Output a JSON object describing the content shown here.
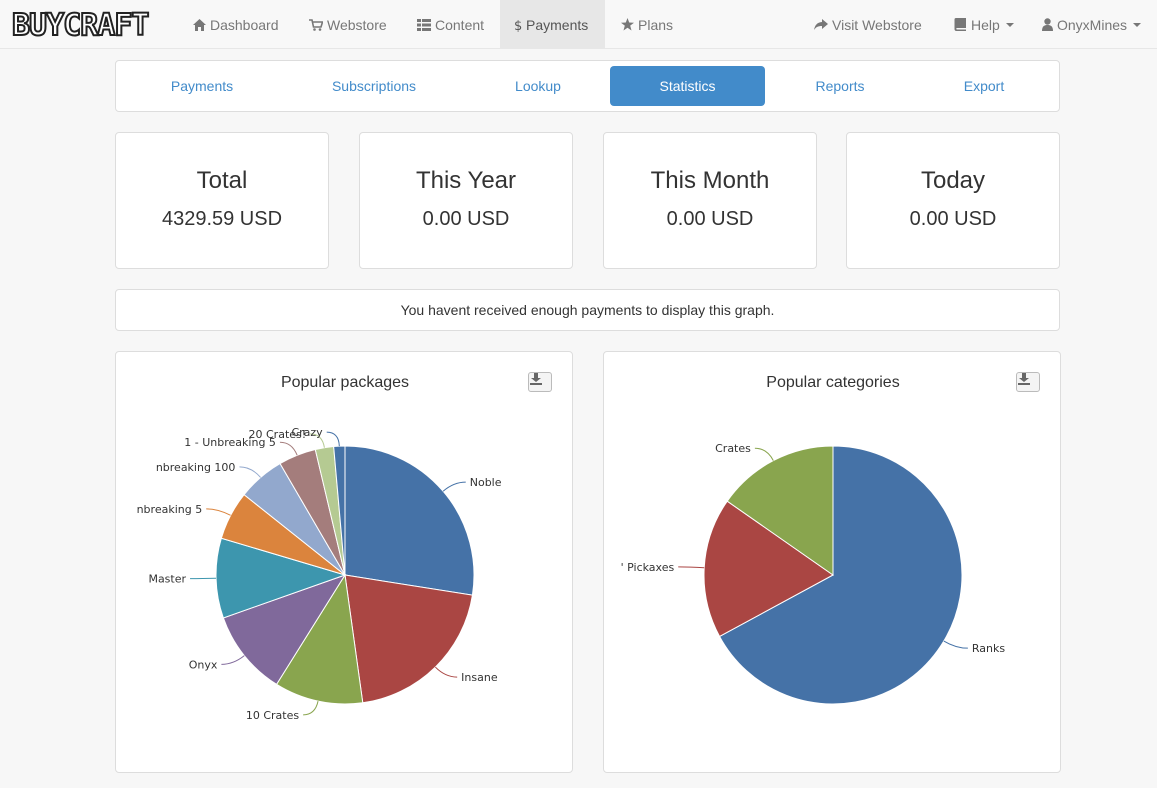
{
  "brand": {
    "name": "BUYCRAFT"
  },
  "nav": {
    "dashboard": "Dashboard",
    "webstore": "Webstore",
    "content": "Content",
    "payments": "Payments",
    "plans": "Plans",
    "visit_webstore": "Visit Webstore",
    "help": "Help",
    "user": "OnyxMines"
  },
  "subtabs": [
    "Payments",
    "Subscriptions",
    "Lookup",
    "Statistics",
    "Reports",
    "Export"
  ],
  "stats": [
    {
      "title": "Total",
      "value": "4329.59 USD"
    },
    {
      "title": "This Year",
      "value": "0.00 USD"
    },
    {
      "title": "This Month",
      "value": "0.00 USD"
    },
    {
      "title": "Today",
      "value": "0.00 USD"
    }
  ],
  "notice": "You havent received enough payments to display this graph.",
  "colors": {
    "accent": "#428bca",
    "slices": [
      "#4572a7",
      "#aa4643",
      "#89a54e",
      "#80699b",
      "#3d96ae",
      "#db843d",
      "#92a8cd",
      "#a47d7c",
      "#b5ca92",
      "#4572a7"
    ]
  },
  "icons": {
    "dashboard": "home-icon",
    "webstore": "cart-icon",
    "content": "list-icon",
    "payments": "dollar-icon",
    "plans": "star-icon",
    "visit": "share-icon",
    "help": "book-icon",
    "user": "user-icon",
    "export": "download-icon"
  },
  "chart_data": [
    {
      "type": "pie",
      "title": "Popular packages",
      "categories": [
        "Noble",
        "Insane",
        "10 Crates",
        "Onyx",
        "Master",
        "nbreaking 5",
        "nbreaking 100",
        "1 - Unbreaking 5",
        "20 Crates!",
        "Crazy"
      ],
      "values": [
        27.5,
        20.3,
        11.1,
        10.7,
        10.0,
        6.1,
        5.9,
        4.7,
        2.3,
        1.4
      ]
    },
    {
      "type": "pie",
      "title": "Popular categories",
      "categories": [
        "Ranks",
        "' Pickaxes",
        "Crates"
      ],
      "values": [
        67.1,
        17.6,
        15.3
      ]
    }
  ]
}
